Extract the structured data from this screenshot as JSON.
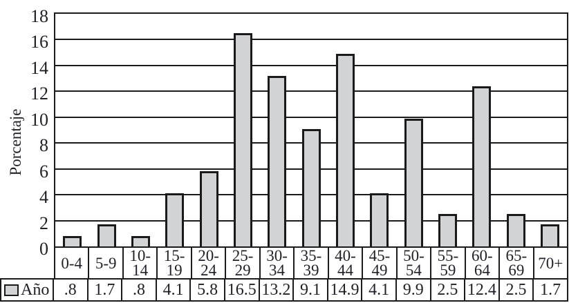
{
  "chart_data": {
    "type": "bar",
    "title": "",
    "xlabel": "",
    "ylabel": "Porcentaje",
    "ylim": [
      0,
      18
    ],
    "y_ticks": [
      0,
      2,
      4,
      6,
      8,
      10,
      12,
      14,
      16,
      18
    ],
    "grid": "horizontal",
    "legend_position": "table-row-left",
    "series_label": "Año",
    "categories": [
      "0-4",
      "5-9",
      "10-14",
      "15-19",
      "20-24",
      "25-29",
      "30-34",
      "35-39",
      "40-44",
      "45-49",
      "50-54",
      "55-59",
      "60-64",
      "65-69",
      "70+"
    ],
    "values": [
      0.8,
      1.7,
      0.8,
      4.1,
      5.8,
      16.5,
      13.2,
      9.1,
      14.9,
      4.1,
      9.9,
      2.5,
      12.4,
      2.5,
      1.7
    ],
    "value_labels": [
      ".8",
      "1.7",
      ".8",
      "4.1",
      "5.8",
      "16.5",
      "13.2",
      "9.1",
      "14.9",
      "4.1",
      "9.9",
      "2.5",
      "12.4",
      "2.5",
      "1.7"
    ],
    "bar_fill_color": "#d2d3d4",
    "bar_border_color": "#1a1a1a",
    "line_color": "#1a1a1a",
    "text_color": "#1f1f28"
  }
}
